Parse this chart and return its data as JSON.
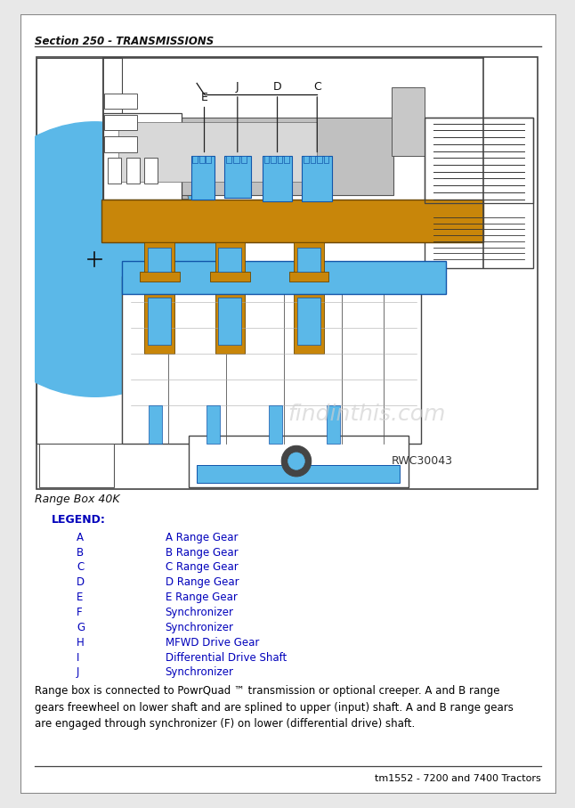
{
  "page_bg": "#e8e8e8",
  "content_bg": "#ffffff",
  "border_color": "#888888",
  "header_text": "Section 250 - TRANSMISSIONS",
  "header_fontsize": 8.5,
  "caption_text": "Range Box 40K",
  "caption_fontsize": 9,
  "legend_title": "LEGEND:",
  "legend_title_color": "#0000bb",
  "legend_title_bold": true,
  "legend_title_fontsize": 9,
  "legend_items": [
    [
      "A",
      "A Range Gear"
    ],
    [
      "B",
      "B Range Gear"
    ],
    [
      "C",
      "C Range Gear"
    ],
    [
      "D",
      "D Range Gear"
    ],
    [
      "E",
      "E Range Gear"
    ],
    [
      "F",
      "Synchronizer"
    ],
    [
      "G",
      "Synchronizer"
    ],
    [
      "H",
      "MFWD Drive Gear"
    ],
    [
      "I",
      "Differential Drive Shaft"
    ],
    [
      "J",
      "Synchronizer"
    ]
  ],
  "legend_color": "#0000bb",
  "legend_fontsize": 8.5,
  "body_text": "Range box is connected to PowrQuad ™ transmission or optional creeper. A and B range\ngears freewheel on lower shaft and are splined to upper (input) shaft. A and B range gears\nare engaged through synchronizer (F) on lower (differential drive) shaft.",
  "body_fontsize": 8.5,
  "body_color": "#000000",
  "footer_text": "tm1552 - 7200 and 7400 Tractors",
  "footer_fontsize": 8,
  "footer_color": "#000000",
  "diagram_ref": "RWC30043",
  "watermark": "findinthis.com",
  "blue": "#5bb8e8",
  "orange": "#c8860a",
  "gray": "#aaaaaa",
  "dark_gray": "#888888",
  "light_gray": "#cccccc"
}
